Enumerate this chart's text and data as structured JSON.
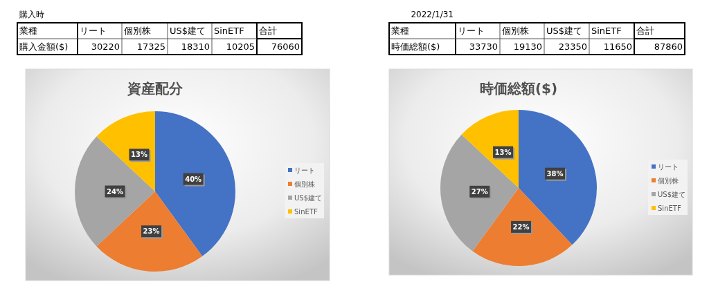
{
  "chart_data": [
    {
      "type": "pie",
      "title": "資産配分",
      "categories": [
        "リート",
        "個別株",
        "US$建て",
        "SinETF"
      ],
      "values": [
        40,
        23,
        24,
        13
      ],
      "colors": [
        "#4472c4",
        "#ed7d31",
        "#a5a5a5",
        "#ffc000"
      ],
      "value_labels": [
        "40%",
        "23%",
        "24%",
        "13%"
      ],
      "legend": "right",
      "annotations": [
        "購入時",
        "業種",
        "合計",
        "購入金額($)",
        "30220",
        "17325",
        "18310",
        "10205",
        "76060"
      ]
    },
    {
      "type": "pie",
      "title": "時価総額($)",
      "categories": [
        "リート",
        "個別株",
        "US$建て",
        "SinETF"
      ],
      "values": [
        38,
        22,
        27,
        13
      ],
      "colors": [
        "#4472c4",
        "#ed7d31",
        "#a5a5a5",
        "#ffc000"
      ],
      "value_labels": [
        "38%",
        "22%",
        "27%",
        "13%"
      ],
      "legend": "right",
      "annotations": [
        "2022/1/31",
        "業種",
        "合計",
        "時価総額($)",
        "33730",
        "19130",
        "23350",
        "11650",
        "87860"
      ]
    }
  ]
}
